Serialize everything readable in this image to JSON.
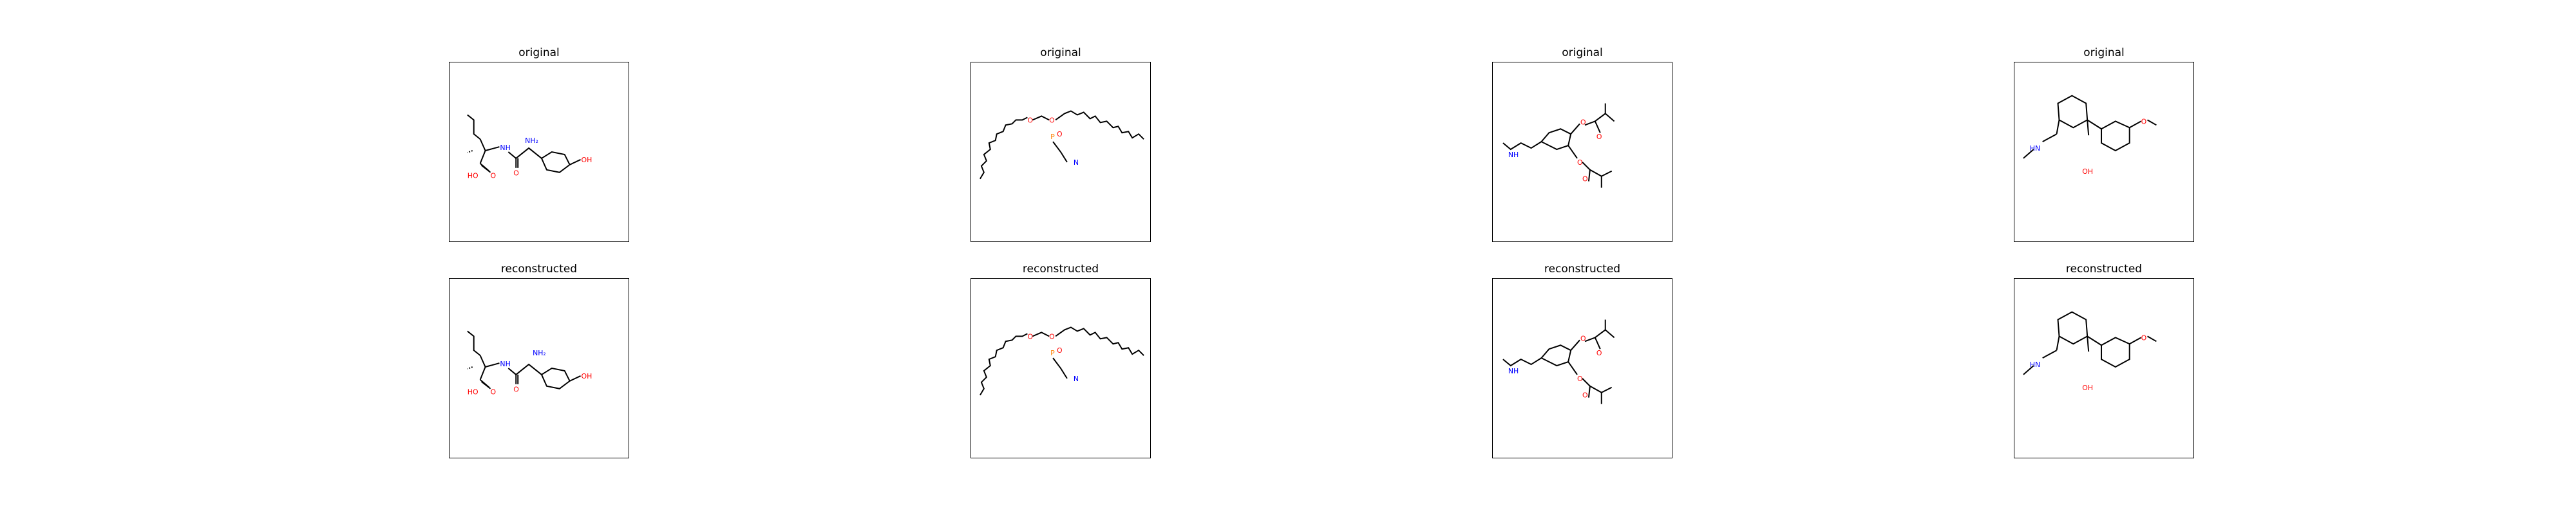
{
  "titles": {
    "original": "original",
    "reconstructed": "reconstructed"
  },
  "colors": {
    "bond": "#000000",
    "nitrogen": "#0000ff",
    "oxygen": "#ff0000",
    "phosphorus": "#ff8000",
    "frame": "#000000"
  },
  "molecules": [
    {
      "original": {
        "labels": {
          "nh2": "NH₂",
          "nh": "NH",
          "oh_acid": "HO",
          "o_acid": "O",
          "o_amide": "O",
          "oh_phenol": "OH"
        }
      },
      "reconstructed": {
        "labels": {
          "nh2": "NH₂",
          "nh": "NH",
          "oh_acid": "HO",
          "o_acid": "O",
          "o_amide": "O",
          "oh_phenol": "OH"
        }
      }
    },
    {
      "original": {
        "labels": {
          "p": "P",
          "o_p1": "O",
          "o_p2": "O",
          "o_chain": "O",
          "n": "N"
        }
      },
      "reconstructed": {
        "labels": {
          "p": "P",
          "o_p1": "O",
          "o_p2": "O",
          "o_chain": "O",
          "n": "N"
        }
      }
    },
    {
      "original": {
        "labels": {
          "nh": "NH",
          "o1": "O",
          "o2": "O",
          "o3": "O",
          "o4": "O"
        }
      },
      "reconstructed": {
        "labels": {
          "nh": "NH",
          "o1": "O",
          "o2": "O",
          "o3": "O",
          "o4": "O"
        }
      }
    },
    {
      "original": {
        "labels": {
          "hn": "HN",
          "oh": "OH",
          "o_methoxy": "O"
        }
      },
      "reconstructed": {
        "labels": {
          "hn": "HN",
          "oh": "OH",
          "o_methoxy": "O"
        }
      }
    }
  ]
}
